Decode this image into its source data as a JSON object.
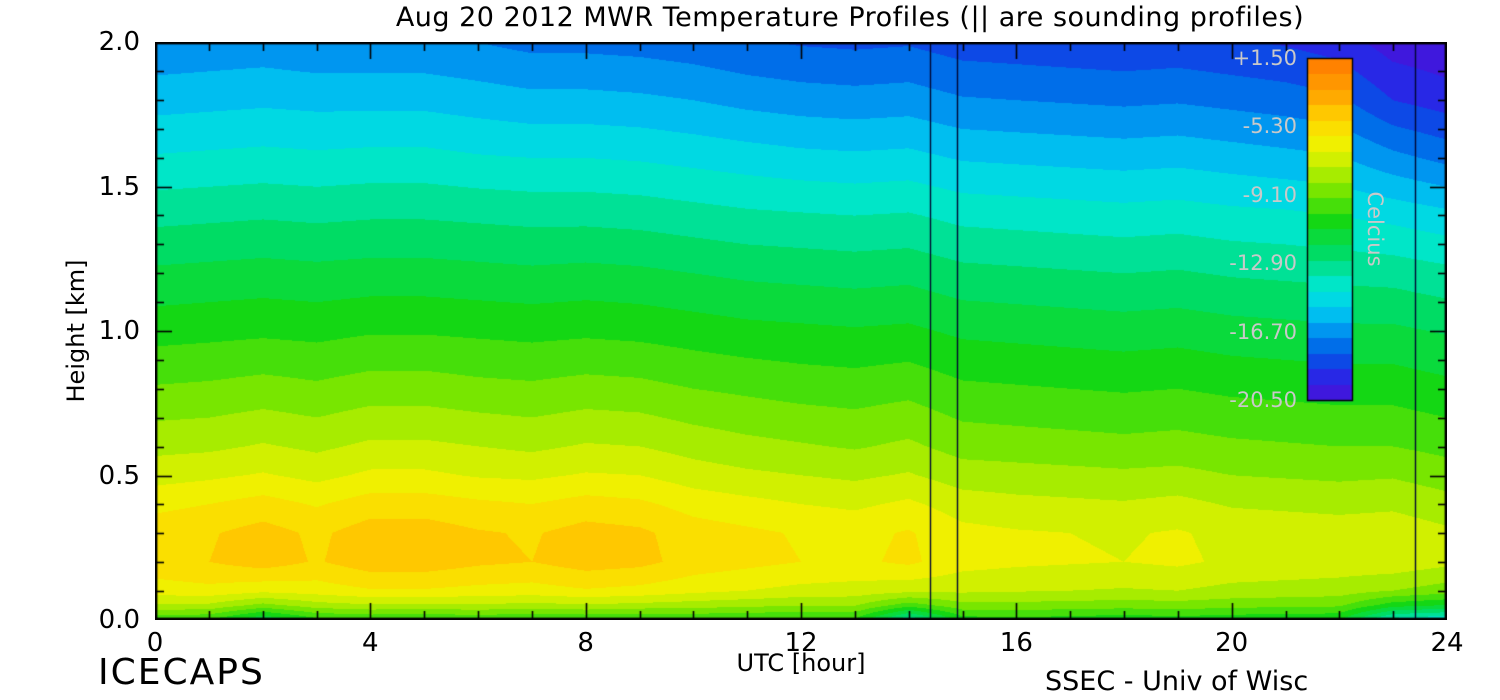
{
  "title": "Aug 20 2012 MWR Temperature Profiles (|| are sounding profiles)",
  "xlabel": "UTC [hour]",
  "ylabel": "Height [km]",
  "footer_left": "ICECAPS",
  "footer_right": "SSEC - Univ of Wisc",
  "colorbar": {
    "label": "Celcius",
    "tick_labels": [
      "+1.50",
      "-5.30",
      "-9.10",
      "-12.90",
      "-16.70",
      "-20.50"
    ],
    "min": -20.5,
    "max": 1.5
  },
  "chart_data": {
    "type": "heatmap",
    "title": "Aug 20 2012 MWR Temperature Profiles (|| are sounding profiles)",
    "xlabel": "UTC [hour]",
    "ylabel": "Height [km]",
    "xlim": [
      0,
      24
    ],
    "ylim": [
      0,
      2
    ],
    "x_ticks": [
      0,
      4,
      8,
      12,
      16,
      20,
      24
    ],
    "y_ticks": [
      "0.0",
      "0.5",
      "1.0",
      "1.5",
      "2.0"
    ],
    "units": "Celcius",
    "contour_interval": 1.0,
    "sounding_hours": [
      14.4,
      14.9,
      23.4
    ],
    "x_hours": [
      0,
      1,
      2,
      3,
      4,
      5,
      6,
      7,
      8,
      9,
      10,
      11,
      12,
      13,
      14,
      15,
      16,
      17,
      18,
      19,
      20,
      21,
      22,
      23,
      24
    ],
    "y_km": [
      0.0,
      0.05,
      0.1,
      0.2,
      0.3,
      0.4,
      0.5,
      0.6,
      0.8,
      1.0,
      1.2,
      1.4,
      1.6,
      1.8,
      2.0
    ],
    "values": [
      [
        -8.3,
        -8.5,
        -10.5,
        -8.8,
        -8.5,
        -8.6,
        -8.4,
        -8.6,
        -8.5,
        -8.7,
        -8.5,
        -8.6,
        -8.8,
        -8.6,
        -12.5,
        -9.0,
        -8.8,
        -9.0,
        -9.2,
        -9.0,
        -9.2,
        -9.3,
        -9.4,
        -13.0,
        -13.5
      ],
      [
        -5.6,
        -5.7,
        -6.8,
        -5.9,
        -5.6,
        -5.7,
        -5.6,
        -5.8,
        -5.6,
        -5.8,
        -6.0,
        -6.2,
        -6.4,
        -6.4,
        -8.0,
        -6.8,
        -6.8,
        -6.9,
        -7.0,
        -6.9,
        -7.1,
        -7.2,
        -7.3,
        -9.0,
        -9.5
      ],
      [
        -4.0,
        -3.8,
        -4.2,
        -4.0,
        -3.6,
        -3.6,
        -3.8,
        -3.9,
        -3.6,
        -3.8,
        -4.2,
        -4.5,
        -4.8,
        -4.9,
        -5.2,
        -5.3,
        -5.4,
        -5.5,
        -5.6,
        -5.5,
        -5.8,
        -5.9,
        -6.0,
        -6.5,
        -7.0
      ],
      [
        -2.8,
        -2.5,
        -2.0,
        -2.6,
        -1.9,
        -1.9,
        -2.3,
        -2.5,
        -2.0,
        -2.2,
        -2.9,
        -3.2,
        -3.5,
        -3.7,
        -3.3,
        -4.1,
        -4.3,
        -4.4,
        -4.5,
        -4.3,
        -4.7,
        -4.8,
        -4.9,
        -4.8,
        -5.2
      ],
      [
        -2.9,
        -2.6,
        -2.1,
        -2.7,
        -2.0,
        -2.0,
        -2.4,
        -2.6,
        -2.1,
        -2.3,
        -3.0,
        -3.3,
        -3.6,
        -3.8,
        -3.4,
        -4.2,
        -4.4,
        -4.5,
        -4.6,
        -4.4,
        -4.8,
        -4.9,
        -5.0,
        -4.9,
        -5.3
      ],
      [
        -3.8,
        -3.5,
        -3.1,
        -3.6,
        -3.0,
        -3.0,
        -3.3,
        -3.5,
        -3.1,
        -3.3,
        -3.9,
        -4.2,
        -4.5,
        -4.7,
        -4.3,
        -5.0,
        -5.2,
        -5.3,
        -5.4,
        -5.2,
        -5.6,
        -5.7,
        -5.8,
        -5.7,
        -6.1
      ],
      [
        -4.9,
        -4.7,
        -4.4,
        -4.8,
        -4.3,
        -4.3,
        -4.6,
        -4.7,
        -4.4,
        -4.5,
        -5.0,
        -5.3,
        -5.5,
        -5.7,
        -5.4,
        -6.0,
        -6.1,
        -6.2,
        -6.3,
        -6.2,
        -6.5,
        -6.6,
        -6.7,
        -6.6,
        -7.0
      ],
      [
        -5.8,
        -5.7,
        -5.4,
        -5.7,
        -5.3,
        -5.3,
        -5.5,
        -5.7,
        -5.4,
        -5.5,
        -5.9,
        -6.2,
        -6.4,
        -6.6,
        -6.3,
        -6.9,
        -7.0,
        -7.1,
        -7.2,
        -7.1,
        -7.3,
        -7.4,
        -7.5,
        -7.5,
        -7.8
      ],
      [
        -7.4,
        -7.3,
        -7.1,
        -7.3,
        -7.0,
        -7.0,
        -7.2,
        -7.3,
        -7.1,
        -7.2,
        -7.5,
        -7.7,
        -7.9,
        -8.0,
        -7.8,
        -8.3,
        -8.4,
        -8.5,
        -8.6,
        -8.5,
        -8.7,
        -8.8,
        -8.9,
        -8.9,
        -9.2
      ],
      [
        -8.9,
        -8.8,
        -8.7,
        -8.8,
        -8.6,
        -8.6,
        -8.7,
        -8.8,
        -8.7,
        -8.8,
        -9.0,
        -9.2,
        -9.3,
        -9.4,
        -9.3,
        -9.7,
        -9.8,
        -9.9,
        -10.0,
        -9.9,
        -10.1,
        -10.2,
        -10.3,
        -10.3,
        -10.6
      ],
      [
        -10.3,
        -10.2,
        -10.1,
        -10.2,
        -10.1,
        -10.1,
        -10.2,
        -10.3,
        -10.2,
        -10.3,
        -10.5,
        -10.7,
        -10.8,
        -10.9,
        -10.8,
        -11.2,
        -11.3,
        -11.4,
        -11.5,
        -11.4,
        -11.6,
        -11.7,
        -11.8,
        -11.9,
        -12.2
      ],
      [
        -11.8,
        -11.7,
        -11.6,
        -11.7,
        -11.6,
        -11.6,
        -11.7,
        -11.8,
        -11.8,
        -11.9,
        -12.1,
        -12.3,
        -12.4,
        -12.5,
        -12.4,
        -12.8,
        -12.9,
        -13.0,
        -13.1,
        -13.0,
        -13.2,
        -13.3,
        -13.5,
        -13.8,
        -14.2
      ],
      [
        -13.4,
        -13.3,
        -13.2,
        -13.3,
        -13.2,
        -13.2,
        -13.4,
        -13.5,
        -13.5,
        -13.6,
        -13.8,
        -14.0,
        -14.2,
        -14.3,
        -14.2,
        -14.6,
        -14.7,
        -14.8,
        -14.9,
        -14.8,
        -15.0,
        -15.2,
        -15.4,
        -16.2,
        -16.8
      ],
      [
        -14.9,
        -14.8,
        -14.7,
        -14.8,
        -14.8,
        -14.8,
        -15.0,
        -15.2,
        -15.2,
        -15.3,
        -15.5,
        -15.8,
        -16.0,
        -16.1,
        -16.0,
        -16.4,
        -16.5,
        -16.6,
        -16.7,
        -16.6,
        -16.8,
        -17.0,
        -17.3,
        -18.5,
        -19.0
      ],
      [
        -16.3,
        -16.2,
        -16.1,
        -16.3,
        -16.3,
        -16.3,
        -16.5,
        -16.8,
        -16.8,
        -16.9,
        -17.1,
        -17.4,
        -17.6,
        -17.7,
        -17.6,
        -18.0,
        -18.1,
        -18.2,
        -18.3,
        -18.2,
        -18.4,
        -18.6,
        -19.0,
        -20.0,
        -20.3
      ]
    ],
    "colormap_stops": [
      [
        -20.5,
        "#4a10d8"
      ],
      [
        -19.0,
        "#2828e6"
      ],
      [
        -17.5,
        "#005ae6"
      ],
      [
        -16.0,
        "#0096f0"
      ],
      [
        -14.5,
        "#00d2f0"
      ],
      [
        -13.0,
        "#00e6c8"
      ],
      [
        -11.0,
        "#00dc64"
      ],
      [
        -9.0,
        "#14d714"
      ],
      [
        -7.0,
        "#78e600"
      ],
      [
        -5.3,
        "#c8f000"
      ],
      [
        -4.0,
        "#f0f000"
      ],
      [
        -2.5,
        "#ffd700"
      ],
      [
        -1.0,
        "#ffaa00"
      ],
      [
        1.5,
        "#ff7800"
      ]
    ]
  }
}
